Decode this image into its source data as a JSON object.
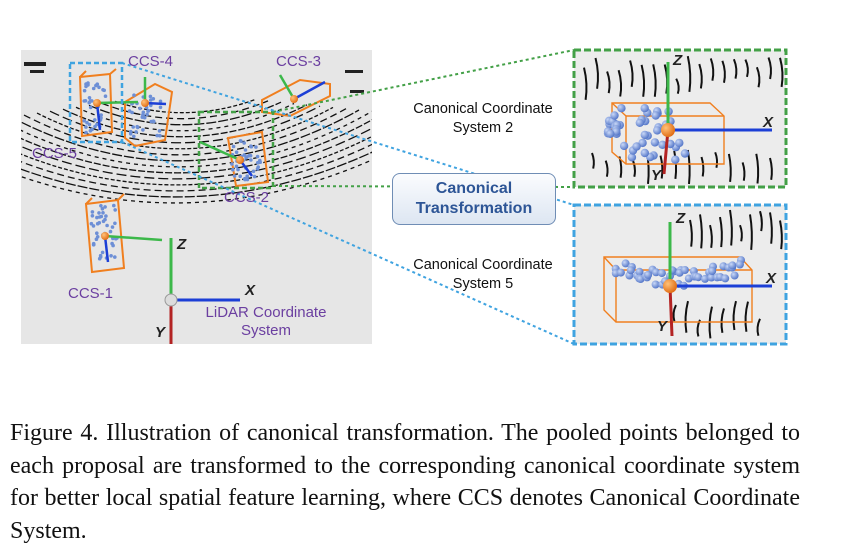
{
  "figure": {
    "lidar_labels": {
      "ccs_1": "CCS-1",
      "ccs_2": "CCS-2",
      "ccs_3": "CCS-3",
      "ccs_4": "CCS-4",
      "ccs_5": "CCS-5",
      "axis_x": "X",
      "axis_y": "Y",
      "axis_z": "Z",
      "system_line1": "LiDAR Coordinate",
      "system_line2": "System"
    },
    "transform": {
      "line1": "Canonical",
      "line2": "Transformation"
    },
    "top_panel": {
      "label_line1": "Canonical Coordinate",
      "label_line2": "System 2",
      "axis_x": "X",
      "axis_y": "Y",
      "axis_z": "Z"
    },
    "bottom_panel": {
      "label_line1": "Canonical Coordinate",
      "label_line2": "System 5",
      "axis_x": "X",
      "axis_y": "Y",
      "axis_z": "Z"
    },
    "colors": {
      "box_orange": "#f07f1f",
      "axis_green": "#3cb84a",
      "axis_blue": "#1c3fd6",
      "axis_red": "#b32323",
      "dash_green": "#43a047",
      "dash_blue": "#3fa3e0",
      "point_blue": "#6d8fd6"
    }
  },
  "caption": {
    "text": "Figure 4. Illustration of canonical transformation.  The pooled points belonged to each proposal are transformed to the corresponding canonical coordinate system for better local spatial feature learning, where CCS denotes Canonical Coordinate System."
  }
}
